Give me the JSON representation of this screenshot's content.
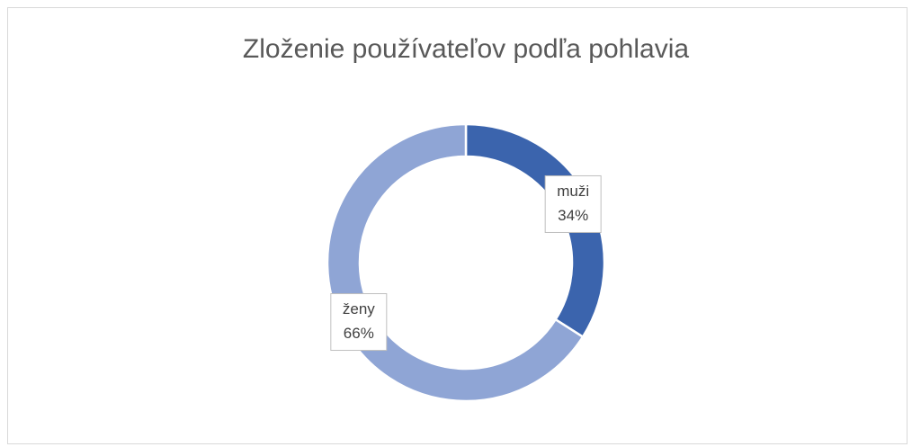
{
  "chart_data": {
    "type": "donut",
    "title": "Zloženie používateľov podľa pohlavia",
    "categories": [
      "muži",
      "ženy"
    ],
    "values": [
      34,
      66
    ],
    "value_labels": [
      "34%",
      "66%"
    ],
    "colors": [
      "#3b64ad",
      "#8fa5d5"
    ]
  }
}
